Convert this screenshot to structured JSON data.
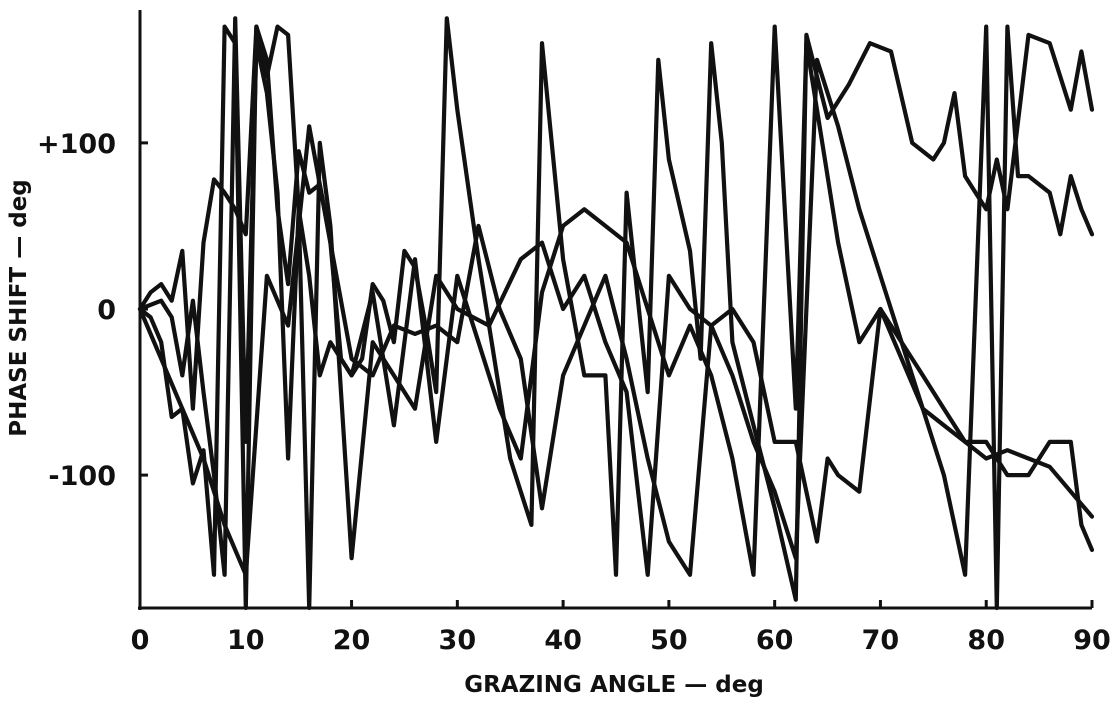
{
  "chart_data": {
    "type": "line",
    "title": "",
    "xlabel": "GRAZING ANGLE — deg",
    "ylabel": "PHASE SHIFT — deg",
    "xlim": [
      0,
      90
    ],
    "ylim": [
      -180,
      180
    ],
    "xticks": [
      0,
      10,
      20,
      30,
      40,
      50,
      60,
      70,
      80,
      90
    ],
    "xtick_labels": [
      "0",
      "10",
      "20",
      "30",
      "40",
      "50",
      "60",
      "70",
      "80",
      "90"
    ],
    "yticks": [
      100,
      0,
      -100
    ],
    "ytick_labels": [
      "+100",
      "0",
      "-100"
    ],
    "grid": false,
    "legend": "none",
    "line_color": "#111111",
    "series": [
      {
        "x": [
          0,
          1,
          2,
          3,
          4,
          5,
          6,
          7,
          8,
          9,
          10,
          11,
          12,
          13,
          14,
          15,
          16,
          17,
          18,
          19,
          20,
          21,
          22,
          23,
          24,
          25,
          26,
          27,
          28,
          29,
          30,
          32,
          35,
          37,
          38,
          40,
          42,
          44,
          45,
          46,
          48,
          49,
          50,
          52,
          53,
          54,
          55,
          56,
          58,
          60,
          62,
          63,
          65,
          67,
          69,
          71,
          73,
          75,
          76,
          77,
          78,
          79,
          80,
          81,
          82,
          84,
          86,
          88,
          89,
          90
        ],
        "y": [
          0,
          10,
          15,
          5,
          35,
          -60,
          40,
          78,
          70,
          60,
          45,
          170,
          150,
          60,
          15,
          95,
          70,
          75,
          40,
          -30,
          -40,
          -30,
          15,
          5,
          -20,
          35,
          25,
          -10,
          -50,
          175,
          120,
          30,
          -90,
          -130,
          160,
          30,
          -40,
          -40,
          -160,
          70,
          -50,
          150,
          90,
          35,
          -30,
          160,
          100,
          -20,
          -70,
          -120,
          -175,
          165,
          115,
          135,
          160,
          155,
          100,
          90,
          100,
          130,
          80,
          70,
          60,
          90,
          60,
          165,
          160,
          120,
          155,
          120
        ]
      },
      {
        "x": [
          0,
          1,
          2,
          3,
          4,
          5,
          6,
          7,
          8,
          9,
          10,
          11,
          12,
          13,
          14,
          15,
          16,
          17,
          18,
          19,
          20,
          22,
          24,
          26,
          28,
          30,
          33,
          36,
          38,
          40,
          42,
          44,
          46,
          48,
          50,
          52,
          54,
          56,
          58,
          60,
          62,
          64,
          65,
          66,
          68,
          70,
          72,
          74,
          76,
          78,
          80,
          82,
          84,
          86,
          88,
          89,
          90
        ],
        "y": [
          0,
          -5,
          -20,
          -65,
          -60,
          -105,
          -85,
          -160,
          170,
          160,
          -180,
          170,
          140,
          170,
          165,
          60,
          -180,
          100,
          50,
          -50,
          -150,
          -20,
          -40,
          -60,
          20,
          0,
          -10,
          30,
          40,
          0,
          20,
          -20,
          -50,
          -160,
          20,
          0,
          -10,
          0,
          -20,
          -80,
          -80,
          -140,
          -90,
          -100,
          -110,
          0,
          -20,
          -40,
          -60,
          -80,
          -80,
          -100,
          -100,
          -80,
          -80,
          -130,
          -145
        ]
      },
      {
        "x": [
          0,
          2,
          3,
          4,
          5,
          6,
          7,
          8,
          9,
          10,
          11,
          12,
          13,
          14,
          15,
          16,
          17,
          18,
          20,
          22,
          24,
          26,
          28,
          30,
          32,
          34,
          36,
          38,
          40,
          42,
          44,
          46,
          48,
          50,
          52,
          54,
          56,
          58,
          60,
          62,
          63,
          64,
          66,
          68,
          70,
          72,
          74,
          76,
          78,
          80,
          81,
          82,
          83,
          84,
          86,
          87,
          88,
          89,
          90
        ],
        "y": [
          0,
          5,
          -5,
          -40,
          5,
          -50,
          -100,
          -160,
          175,
          -80,
          160,
          130,
          70,
          -90,
          60,
          20,
          -40,
          -20,
          -40,
          10,
          -70,
          30,
          -80,
          20,
          -20,
          -60,
          -90,
          10,
          50,
          60,
          50,
          40,
          0,
          -40,
          -10,
          -40,
          -90,
          -160,
          170,
          -60,
          160,
          120,
          40,
          -20,
          0,
          -30,
          -60,
          -100,
          -160,
          170,
          -180,
          170,
          80,
          80,
          70,
          45,
          80,
          60,
          45
        ]
      },
      {
        "x": [
          0,
          2,
          4,
          6,
          8,
          10,
          12,
          14,
          16,
          18,
          20,
          22,
          24,
          26,
          28,
          30,
          32,
          34,
          36,
          38,
          40,
          42,
          44,
          46,
          48,
          50,
          52,
          54,
          56,
          58,
          60,
          62,
          64,
          66,
          68,
          70,
          72,
          74,
          76,
          78,
          80,
          82,
          84,
          86,
          88,
          90
        ],
        "y": [
          0,
          -30,
          -60,
          -90,
          -130,
          -160,
          20,
          -10,
          110,
          40,
          -30,
          -40,
          -10,
          -15,
          -10,
          -20,
          50,
          0,
          -30,
          -120,
          -40,
          -10,
          20,
          -30,
          -90,
          -140,
          -160,
          -10,
          -40,
          -80,
          -110,
          -150,
          150,
          110,
          60,
          20,
          -20,
          -60,
          -70,
          -80,
          -90,
          -85,
          -90,
          -95,
          -110,
          -125
        ]
      }
    ]
  }
}
